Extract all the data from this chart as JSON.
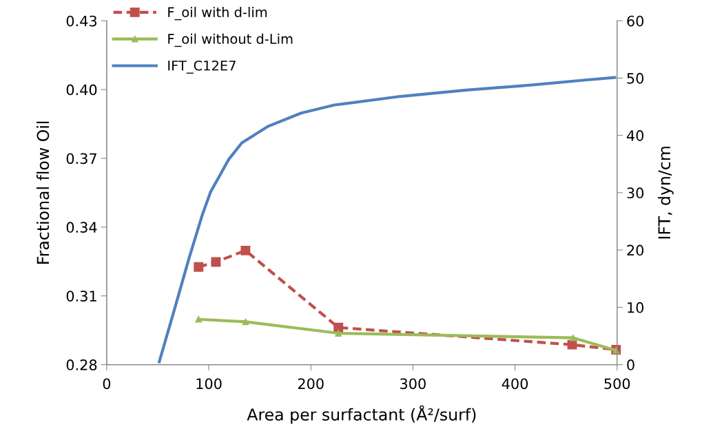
{
  "chart_data": {
    "type": "line",
    "xlabel": "Area per surfactant (Å²/surf)",
    "ylabel": "Fractional flow Oil",
    "y2label": "IFT, dyn/cm",
    "xlim": [
      0,
      500
    ],
    "xticks": [
      0,
      100,
      200,
      300,
      400,
      500
    ],
    "ylim": [
      0.28,
      0.43
    ],
    "yticks": [
      0.28,
      0.31,
      0.34,
      0.37,
      {
        "value": 0.4,
        "label": "0.40"
      },
      0.43
    ],
    "y2lim": [
      0,
      60
    ],
    "y2ticks": [
      0,
      10,
      20,
      30,
      40,
      50,
      60
    ],
    "grid": false,
    "legend": "top left",
    "series": [
      {
        "name": "F_oil with d-lim",
        "color": "#c0504d",
        "marker": "square",
        "line_style": "dashed",
        "x": [
          90,
          107,
          136,
          227,
          456,
          499
        ],
        "values": [
          0.3226,
          0.3248,
          0.3298,
          0.2962,
          0.2887,
          0.2865
        ]
      },
      {
        "name": "F_oil without d-Lim",
        "color": "#9bbb59",
        "marker": "triangle",
        "line_style": "solid",
        "x": [
          90,
          136,
          227,
          457,
          499
        ],
        "values": [
          0.2998,
          0.2987,
          0.2937,
          0.2917,
          0.2862
        ]
      },
      {
        "name": "IFT_C12E7",
        "color": "#4f81bd",
        "marker": "none",
        "line_style": "solid",
        "axis": "y2",
        "x": [
          51.5,
          66,
          80.7,
          93.6,
          101.7,
          119.5,
          132.4,
          158.3,
          190.5,
          223,
          287.6,
          352,
          417,
          465,
          497.7
        ],
        "values": [
          0.5,
          9.4,
          18.6,
          26.1,
          30.1,
          35.8,
          38.7,
          41.6,
          43.9,
          45.3,
          46.8,
          47.9,
          48.8,
          49.6,
          50.1
        ]
      }
    ]
  }
}
